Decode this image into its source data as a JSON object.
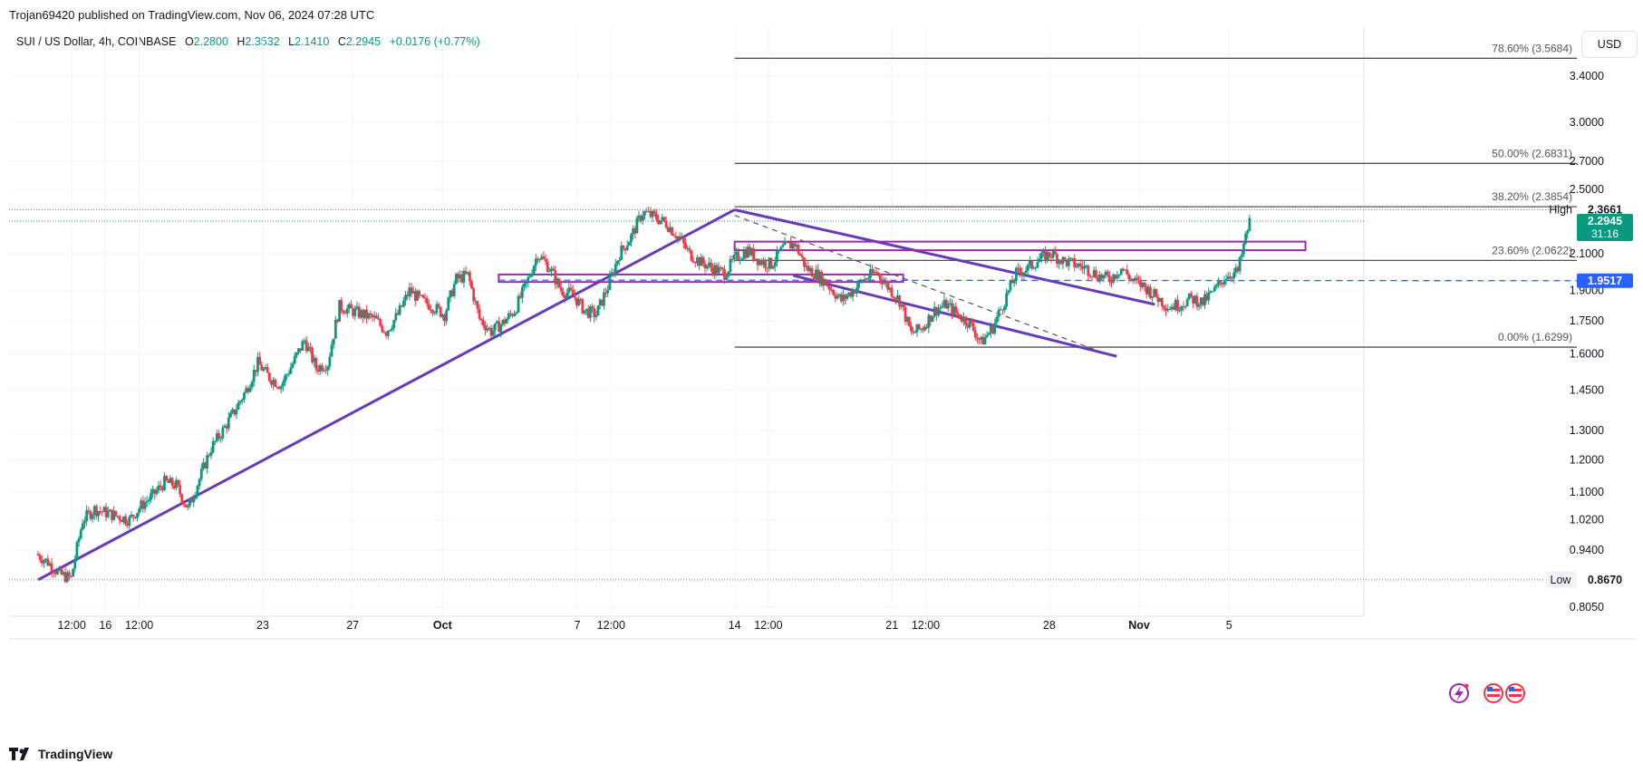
{
  "header": {
    "published_by": "Trojan69420 published on TradingView.com, Nov 06, 2024 07:28 UTC"
  },
  "legend": {
    "symbol": "SUI / US Dollar, 4h, COINBASE",
    "open_label": "O",
    "open": "2.2800",
    "high_label": "H",
    "high": "2.3532",
    "low_label": "L",
    "low": "2.1410",
    "close_label": "C",
    "close": "2.2945",
    "change": "+0.0176 (+0.77%)"
  },
  "currency_button": "USD",
  "footer": {
    "brand": "TradingView",
    "logo_icon": "tradingview-logo-icon"
  },
  "icons": {
    "flash": "flash-icon",
    "flags": "us-flag-icon"
  },
  "chart_data": {
    "type": "candlestick",
    "price_axis": {
      "scale": "log",
      "ticks": [
        "3.4000",
        "3.0000",
        "2.7000",
        "2.5000",
        "2.1000",
        "1.9000",
        "1.7500",
        "1.6000",
        "1.4500",
        "1.3000",
        "1.2000",
        "1.1000",
        "1.0200",
        "0.9400",
        "0.8050"
      ]
    },
    "time_axis": {
      "ticks": [
        {
          "label": "12:00",
          "day": 1.5
        },
        {
          "label": "16",
          "day": 3
        },
        {
          "label": "12:00",
          "day": 4.5
        },
        {
          "label": "23",
          "day": 10
        },
        {
          "label": "27",
          "day": 14
        },
        {
          "label": "Oct",
          "day": 18
        },
        {
          "label": "7",
          "day": 24
        },
        {
          "label": "12:00",
          "day": 25.5
        },
        {
          "label": "14",
          "day": 31
        },
        {
          "label": "12:00",
          "day": 32.5
        },
        {
          "label": "21",
          "day": 38
        },
        {
          "label": "12:00",
          "day": 39.5
        },
        {
          "label": "28",
          "day": 45
        },
        {
          "label": "Nov",
          "day": 49
        },
        {
          "label": "5",
          "day": 53
        }
      ]
    },
    "price_labels": {
      "high": {
        "label": "High",
        "value": "2.3661"
      },
      "current": {
        "value": "2.2945",
        "countdown": "31:16"
      },
      "support": {
        "value": "1.9517"
      },
      "low": {
        "label": "Low",
        "value": "0.8670"
      }
    },
    "fibonacci": [
      {
        "label": "78.60% (3.5684)",
        "price": 3.5684
      },
      {
        "label": "50.00% (2.6831)",
        "price": 2.6831
      },
      {
        "label": "38.20% (2.3854)",
        "price": 2.3854
      },
      {
        "label": "23.60% (2.0622)",
        "price": 2.0622
      },
      {
        "label": "0.00% (1.6299)",
        "price": 1.6299
      }
    ],
    "price_series": [
      0.93,
      0.91,
      0.88,
      0.87,
      1.02,
      1.05,
      1.04,
      1.03,
      1.02,
      1.06,
      1.09,
      1.13,
      1.12,
      1.05,
      1.14,
      1.24,
      1.3,
      1.37,
      1.45,
      1.56,
      1.5,
      1.47,
      1.56,
      1.66,
      1.54,
      1.56,
      1.82,
      1.8,
      1.78,
      1.76,
      1.7,
      1.78,
      1.9,
      1.85,
      1.82,
      1.78,
      1.96,
      1.98,
      1.76,
      1.7,
      1.74,
      1.8,
      1.93,
      2.1,
      2.02,
      1.9,
      1.88,
      1.8,
      1.78,
      1.92,
      2.1,
      2.2,
      2.35,
      2.32,
      2.28,
      2.2,
      2.1,
      2.05,
      2.02,
      1.99,
      2.08,
      2.12,
      2.06,
      2.04,
      2.13,
      2.16,
      2.02,
      1.98,
      1.92,
      1.85,
      1.9,
      1.96,
      2.0,
      1.92,
      1.85,
      1.69,
      1.72,
      1.8,
      1.83,
      1.78,
      1.74,
      1.65,
      1.72,
      1.85,
      1.99,
      2.02,
      2.07,
      2.1,
      2.06,
      2.04,
      2.02,
      1.98,
      1.96,
      2.02,
      1.95,
      1.92,
      1.87,
      1.82,
      1.83,
      1.86,
      1.84,
      1.9,
      1.98,
      2.0,
      2.29
    ]
  }
}
